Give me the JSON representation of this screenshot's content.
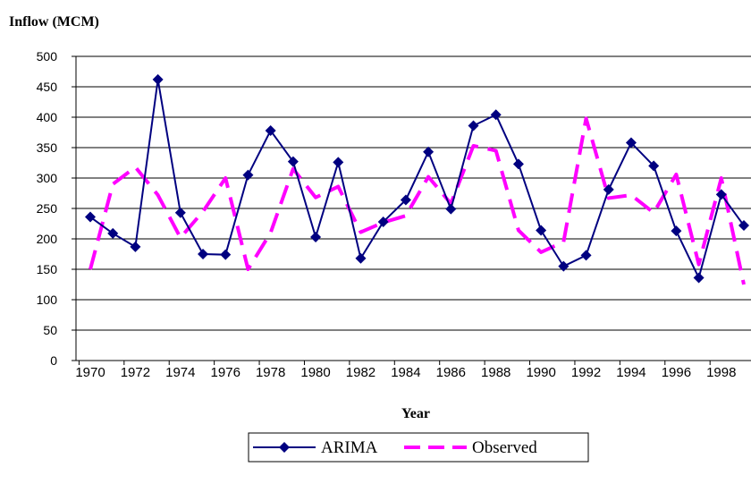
{
  "chart_data": {
    "type": "line",
    "ylabel": "Inflow (MCM)",
    "xlabel": "Year",
    "ylim": [
      0,
      500
    ],
    "yticks": [
      0,
      50,
      100,
      150,
      200,
      250,
      300,
      350,
      400,
      450,
      500
    ],
    "x": [
      1970,
      1971,
      1972,
      1973,
      1974,
      1975,
      1976,
      1977,
      1978,
      1979,
      1980,
      1981,
      1982,
      1983,
      1984,
      1985,
      1986,
      1987,
      1988,
      1989,
      1990,
      1991,
      1992,
      1993,
      1994,
      1995,
      1996,
      1997,
      1998,
      1999
    ],
    "xtick_labels": [
      "1970",
      "1972",
      "1974",
      "1976",
      "1978",
      "1980",
      "1982",
      "1984",
      "1986",
      "1988",
      "1990",
      "1992",
      "1994",
      "1996",
      "1998"
    ],
    "grid": "horizontal",
    "legend_position": "bottom",
    "series": [
      {
        "name": "ARIMA",
        "color": "#000080",
        "style": "solid-diamond",
        "values": [
          236,
          209,
          187,
          462,
          243,
          175,
          174,
          305,
          378,
          327,
          203,
          326,
          168,
          228,
          264,
          343,
          249,
          386,
          404,
          323,
          214,
          155,
          173,
          281,
          358,
          320,
          213,
          136,
          273,
          222
        ]
      },
      {
        "name": "Observed",
        "color": "#FF00FF",
        "style": "dashed",
        "values": [
          150,
          290,
          318,
          272,
          202,
          245,
          300,
          150,
          210,
          315,
          268,
          286,
          211,
          227,
          238,
          302,
          258,
          353,
          345,
          214,
          178,
          195,
          398,
          267,
          272,
          243,
          306,
          158,
          300,
          125
        ]
      }
    ]
  }
}
